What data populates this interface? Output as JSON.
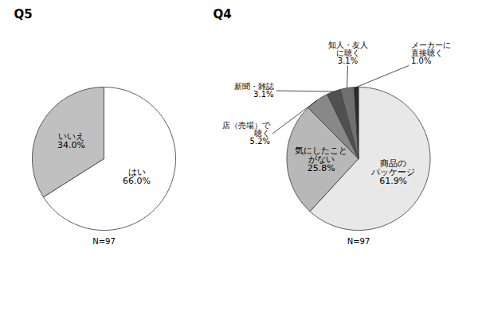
{
  "chart_data": [
    {
      "type": "pie",
      "title": "Q5",
      "categories": [
        "はい",
        "いいえ"
      ],
      "values": [
        66.0,
        34.0
      ],
      "value_labels": [
        "66.0%",
        "34.0%"
      ],
      "colors": [
        "#ffffff",
        "#c0c0c0"
      ],
      "data_labels": true,
      "annotations": [
        "N=97"
      ]
    },
    {
      "type": "pie",
      "title": "Q4",
      "categories": [
        "商品の\nパッケージ",
        "気にしたこと\nがない",
        "店（売場）で\n聴く",
        "新聞・雑誌",
        "知人・友人\nに聴く",
        "メーカーに\n直接聴く"
      ],
      "values": [
        61.9,
        25.8,
        5.2,
        3.1,
        3.1,
        1.0
      ],
      "value_labels": [
        "61.9%",
        "25.8%",
        "5.2%",
        "3.1%",
        "3.1%",
        "1.0%"
      ],
      "colors": [
        "#e8e8e8",
        "#b8b8b8",
        "#888888",
        "#505050",
        "#707070",
        "#282828"
      ],
      "data_labels": true,
      "annotations": [
        "N=97"
      ]
    }
  ]
}
